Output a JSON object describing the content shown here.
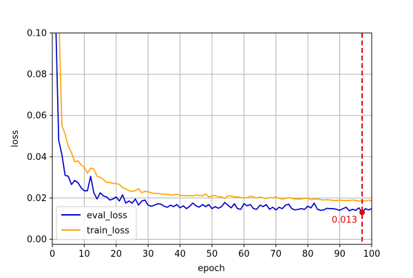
{
  "chart_data": {
    "type": "line",
    "title": "",
    "xlabel": "epoch",
    "ylabel": "loss",
    "xlim": [
      0,
      100
    ],
    "ylim": [
      -0.0025,
      0.1
    ],
    "xticks": [
      0,
      10,
      20,
      30,
      40,
      50,
      60,
      70,
      80,
      90,
      100
    ],
    "xtick_labels": [
      "0",
      "10",
      "20",
      "30",
      "40",
      "50",
      "60",
      "70",
      "80",
      "90",
      "100"
    ],
    "yticks": [
      0.0,
      0.02,
      0.04,
      0.06,
      0.08,
      0.1
    ],
    "ytick_labels": [
      "0.00",
      "0.02",
      "0.04",
      "0.06",
      "0.08",
      "0.10"
    ],
    "grid": true,
    "legend_position": "lower-left",
    "series": [
      {
        "name": "eval_loss",
        "color": "#0000cc",
        "x": [
          1,
          2,
          3,
          4,
          5,
          6,
          7,
          8,
          9,
          10,
          11,
          12,
          13,
          14,
          15,
          16,
          17,
          18,
          19,
          20,
          21,
          22,
          23,
          24,
          25,
          26,
          27,
          28,
          29,
          30,
          31,
          32,
          33,
          34,
          35,
          36,
          37,
          38,
          39,
          40,
          41,
          42,
          43,
          44,
          45,
          46,
          47,
          48,
          49,
          50,
          51,
          52,
          53,
          54,
          55,
          56,
          57,
          58,
          59,
          60,
          61,
          62,
          63,
          64,
          65,
          66,
          67,
          68,
          69,
          70,
          71,
          72,
          73,
          74,
          75,
          76,
          77,
          78,
          79,
          80,
          81,
          82,
          83,
          84,
          85,
          86,
          87,
          88,
          89,
          90,
          91,
          92,
          93,
          94,
          95,
          96,
          97,
          98,
          99,
          100
        ],
        "values": [
          0.11,
          0.048,
          0.041,
          0.031,
          0.0305,
          0.0265,
          0.0285,
          0.0275,
          0.025,
          0.0235,
          0.0235,
          0.0305,
          0.0225,
          0.0195,
          0.0225,
          0.021,
          0.0205,
          0.019,
          0.0195,
          0.0205,
          0.0185,
          0.0215,
          0.0175,
          0.0185,
          0.0175,
          0.0195,
          0.0165,
          0.0185,
          0.019,
          0.0165,
          0.016,
          0.0165,
          0.0172,
          0.017,
          0.016,
          0.0155,
          0.0165,
          0.0158,
          0.0168,
          0.0152,
          0.0162,
          0.0148,
          0.016,
          0.0175,
          0.0162,
          0.0155,
          0.0168,
          0.0158,
          0.0168,
          0.0148,
          0.0158,
          0.015,
          0.0158,
          0.0178,
          0.0165,
          0.0152,
          0.0172,
          0.0148,
          0.0145,
          0.0172,
          0.0162,
          0.0168,
          0.0148,
          0.0145,
          0.0165,
          0.0158,
          0.0168,
          0.0145,
          0.0155,
          0.0142,
          0.0155,
          0.0148,
          0.0165,
          0.017,
          0.0148,
          0.0142,
          0.0145,
          0.0148,
          0.0145,
          0.016,
          0.0152,
          0.0175,
          0.0145,
          0.014,
          0.0142,
          0.015,
          0.0148,
          0.0148,
          0.0145,
          0.014,
          0.0148,
          0.0155,
          0.0138,
          0.0145,
          0.014,
          0.0152,
          0.013,
          0.0148,
          0.0142,
          0.0148
        ]
      },
      {
        "name": "train_loss",
        "color": "#ffa500",
        "x": [
          1,
          2,
          3,
          4,
          5,
          6,
          7,
          8,
          9,
          10,
          11,
          12,
          13,
          14,
          15,
          16,
          17,
          18,
          19,
          20,
          21,
          22,
          23,
          24,
          25,
          26,
          27,
          28,
          29,
          30,
          31,
          32,
          33,
          34,
          35,
          36,
          37,
          38,
          39,
          40,
          41,
          42,
          43,
          44,
          45,
          46,
          47,
          48,
          49,
          50,
          51,
          52,
          53,
          54,
          55,
          56,
          57,
          58,
          59,
          60,
          61,
          62,
          63,
          64,
          65,
          66,
          67,
          68,
          69,
          70,
          71,
          72,
          73,
          74,
          75,
          76,
          77,
          78,
          79,
          80,
          81,
          82,
          83,
          84,
          85,
          86,
          87,
          88,
          89,
          90,
          91,
          92,
          93,
          94,
          95,
          96,
          97,
          98,
          99,
          100
        ],
        "values": [
          0.15,
          0.11,
          0.055,
          0.051,
          0.045,
          0.042,
          0.0375,
          0.038,
          0.036,
          0.035,
          0.032,
          0.0345,
          0.034,
          0.0305,
          0.03,
          0.029,
          0.0275,
          0.0275,
          0.027,
          0.027,
          0.0265,
          0.025,
          0.0245,
          0.0235,
          0.0232,
          0.0235,
          0.0245,
          0.0225,
          0.0232,
          0.023,
          0.0225,
          0.0222,
          0.0222,
          0.022,
          0.0218,
          0.0218,
          0.0215,
          0.0215,
          0.0218,
          0.0212,
          0.0212,
          0.021,
          0.0212,
          0.021,
          0.0215,
          0.0212,
          0.021,
          0.022,
          0.0205,
          0.021,
          0.0212,
          0.0205,
          0.0205,
          0.0198,
          0.021,
          0.021,
          0.0205,
          0.0205,
          0.0202,
          0.02,
          0.0202,
          0.0208,
          0.0205,
          0.02,
          0.0205,
          0.02,
          0.0198,
          0.0202,
          0.02,
          0.0205,
          0.0198,
          0.0195,
          0.0198,
          0.0202,
          0.0198,
          0.0195,
          0.0195,
          0.0195,
          0.0198,
          0.0198,
          0.0192,
          0.0195,
          0.0195,
          0.0192,
          0.019,
          0.0192,
          0.019,
          0.0188,
          0.0188,
          0.019,
          0.0188,
          0.0188,
          0.0188,
          0.019,
          0.0188,
          0.0185,
          0.0185,
          0.0185,
          0.019,
          0.0185
        ]
      }
    ],
    "annotations": [
      {
        "type": "vline",
        "x": 97,
        "color": "#e00000",
        "style": "dashed"
      },
      {
        "type": "point",
        "x": 97,
        "y": 0.013,
        "color": "#e00000",
        "label": "0.013"
      }
    ]
  }
}
